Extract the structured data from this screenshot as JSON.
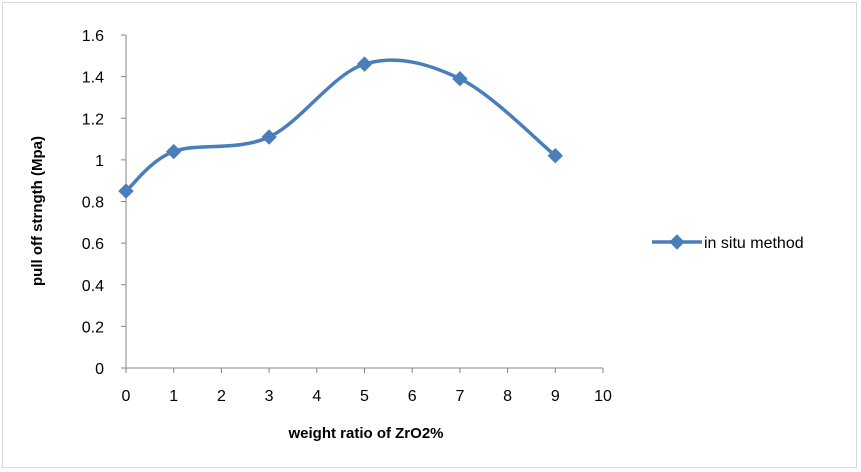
{
  "chart_data": {
    "type": "line",
    "smooth": true,
    "xlabel": "weight ratio of ZrO2%",
    "ylabel": "pull off  strngth (Mpa)",
    "xlim": [
      0,
      10
    ],
    "ylim": [
      0,
      1.6
    ],
    "x_ticks": [
      "0",
      "1",
      "2",
      "3",
      "4",
      "5",
      "6",
      "7",
      "8",
      "9",
      "10"
    ],
    "y_ticks": [
      "0",
      "0.2",
      "0.4",
      "0.6",
      "0.8",
      "1",
      "1.2",
      "1.4",
      "1.6"
    ],
    "grid": false,
    "legend_position": "right",
    "series": [
      {
        "name": "in situ method",
        "color": "#4a7ebb",
        "marker": "diamond",
        "x": [
          0,
          1,
          3,
          5,
          7,
          9
        ],
        "y": [
          0.85,
          1.04,
          1.11,
          1.46,
          1.39,
          1.02
        ]
      }
    ]
  }
}
